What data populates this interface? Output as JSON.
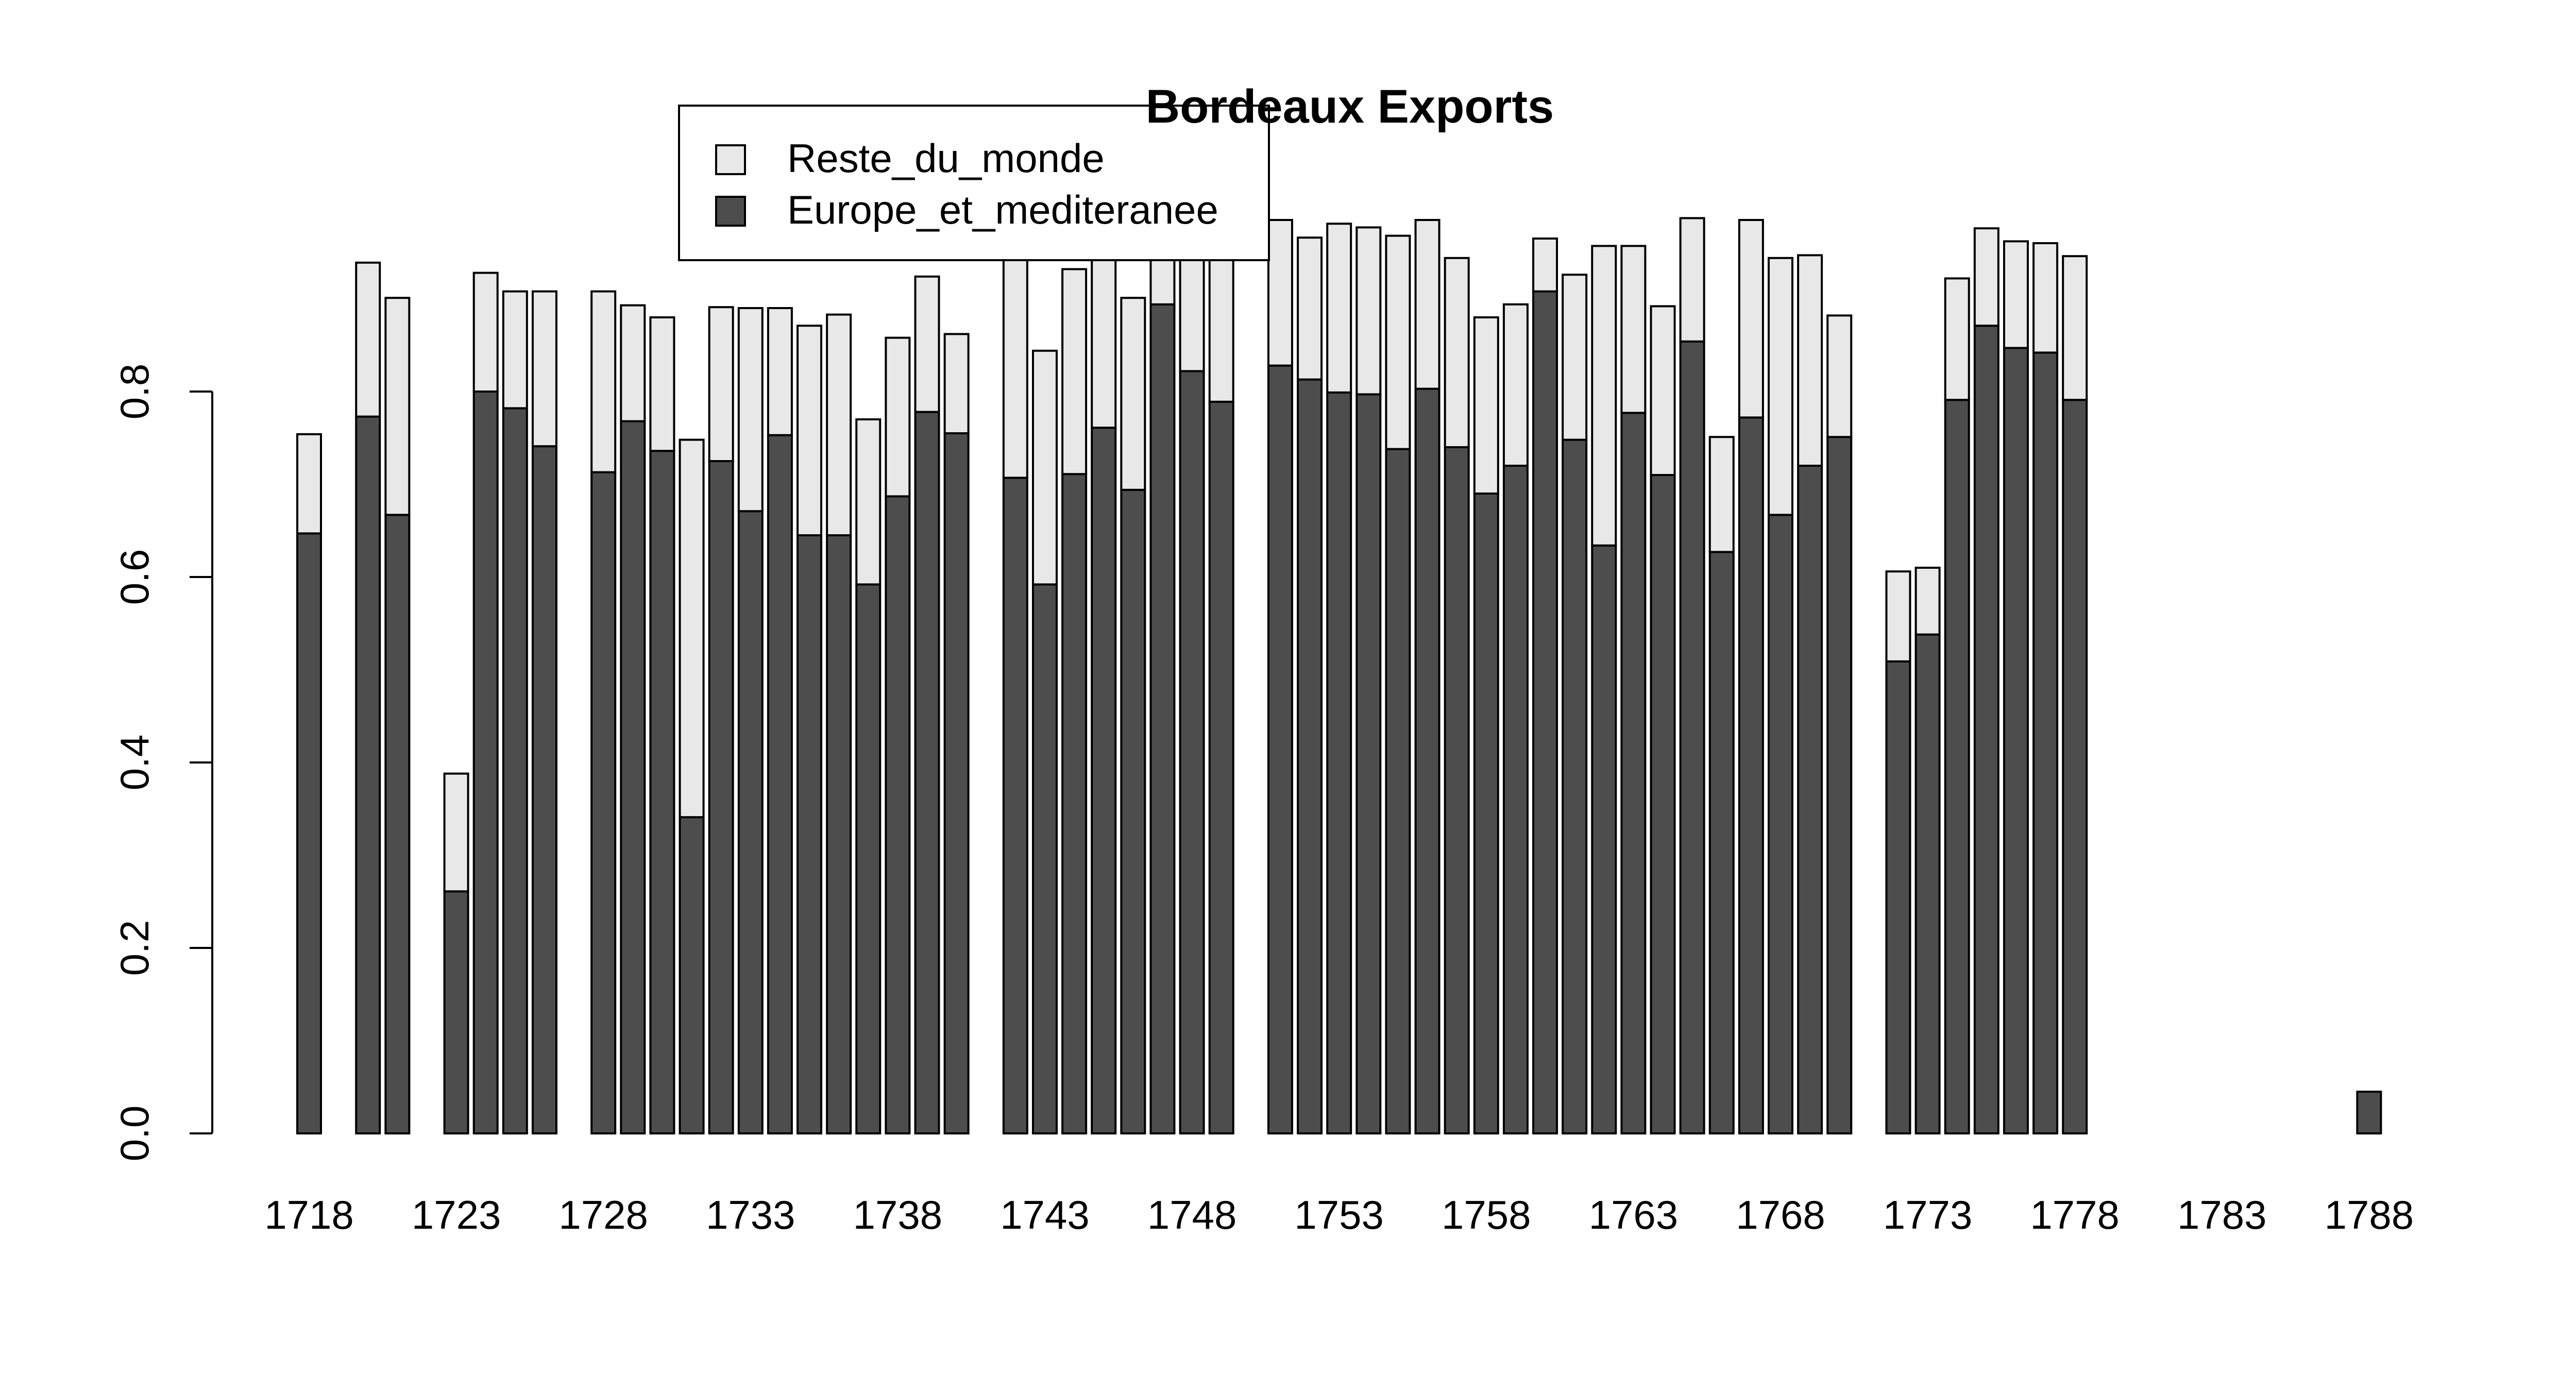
{
  "chart_data": {
    "type": "bar",
    "stacked": true,
    "title": "Bordeaux Exports",
    "xlabel": "",
    "ylabel": "",
    "ylim": [
      0,
      1
    ],
    "yticks": [
      "0.0",
      "0.2",
      "0.4",
      "0.6",
      "0.8"
    ],
    "ytick_values": [
      0,
      0.2,
      0.4,
      0.6,
      0.8
    ],
    "xtick_labels": [
      "1718",
      "1723",
      "1728",
      "1733",
      "1738",
      "1743",
      "1748",
      "1753",
      "1758",
      "1763",
      "1768",
      "1773",
      "1778",
      "1783",
      "1788"
    ],
    "grid": false,
    "legend_position": "top-center",
    "categories": [
      1718,
      1719,
      1720,
      1721,
      1722,
      1723,
      1724,
      1725,
      1726,
      1727,
      1728,
      1729,
      1730,
      1731,
      1732,
      1733,
      1734,
      1735,
      1736,
      1737,
      1738,
      1739,
      1740,
      1741,
      1742,
      1743,
      1744,
      1745,
      1746,
      1747,
      1748,
      1749,
      1750,
      1751,
      1752,
      1753,
      1754,
      1755,
      1756,
      1757,
      1758,
      1759,
      1760,
      1761,
      1762,
      1763,
      1764,
      1765,
      1766,
      1767,
      1768,
      1769,
      1770,
      1771,
      1772,
      1773,
      1774,
      1775,
      1776,
      1777,
      1778,
      1779,
      1780,
      1781,
      1782,
      1783,
      1784,
      1785,
      1786,
      1787,
      1788
    ],
    "series": [
      {
        "name": "Europe_et_mediteranee",
        "color": "#4d4d4d",
        "values": [
          0.647,
          null,
          0.773,
          0.667,
          null,
          0.261,
          0.8,
          0.782,
          0.741,
          null,
          0.713,
          0.768,
          0.736,
          0.341,
          0.725,
          0.671,
          0.753,
          0.645,
          0.645,
          0.592,
          0.687,
          0.778,
          0.755,
          null,
          0.707,
          0.592,
          0.711,
          0.761,
          0.694,
          0.894,
          0.822,
          0.789,
          null,
          0.828,
          0.813,
          0.799,
          0.797,
          0.738,
          0.803,
          0.74,
          0.69,
          0.72,
          0.908,
          0.748,
          0.634,
          0.777,
          0.71,
          0.854,
          0.627,
          0.772,
          0.667,
          0.72,
          0.751,
          null,
          0.509,
          0.538,
          0.791,
          0.871,
          0.847,
          0.842,
          0.791,
          null,
          null,
          null,
          null,
          null,
          null,
          null,
          null,
          null,
          0.045
        ]
      },
      {
        "name": "Reste_du_monde",
        "color": "#e8e8e8",
        "values": [
          0.107,
          null,
          0.166,
          0.234,
          null,
          0.127,
          0.128,
          0.126,
          0.167,
          null,
          0.195,
          0.125,
          0.144,
          0.407,
          0.166,
          0.219,
          0.137,
          0.226,
          0.238,
          0.178,
          0.171,
          0.146,
          0.107,
          null,
          0.343,
          0.252,
          0.221,
          0.281,
          0.207,
          0.156,
          0.246,
          0.201,
          null,
          0.157,
          0.153,
          0.182,
          0.18,
          0.23,
          0.182,
          0.204,
          0.19,
          0.174,
          0.057,
          0.178,
          0.323,
          0.18,
          0.182,
          0.133,
          0.124,
          0.213,
          0.277,
          0.227,
          0.131,
          null,
          0.097,
          0.072,
          0.131,
          0.105,
          0.115,
          0.118,
          0.155,
          null,
          null,
          null,
          null,
          null,
          null,
          null,
          null,
          null,
          0
        ]
      }
    ]
  }
}
